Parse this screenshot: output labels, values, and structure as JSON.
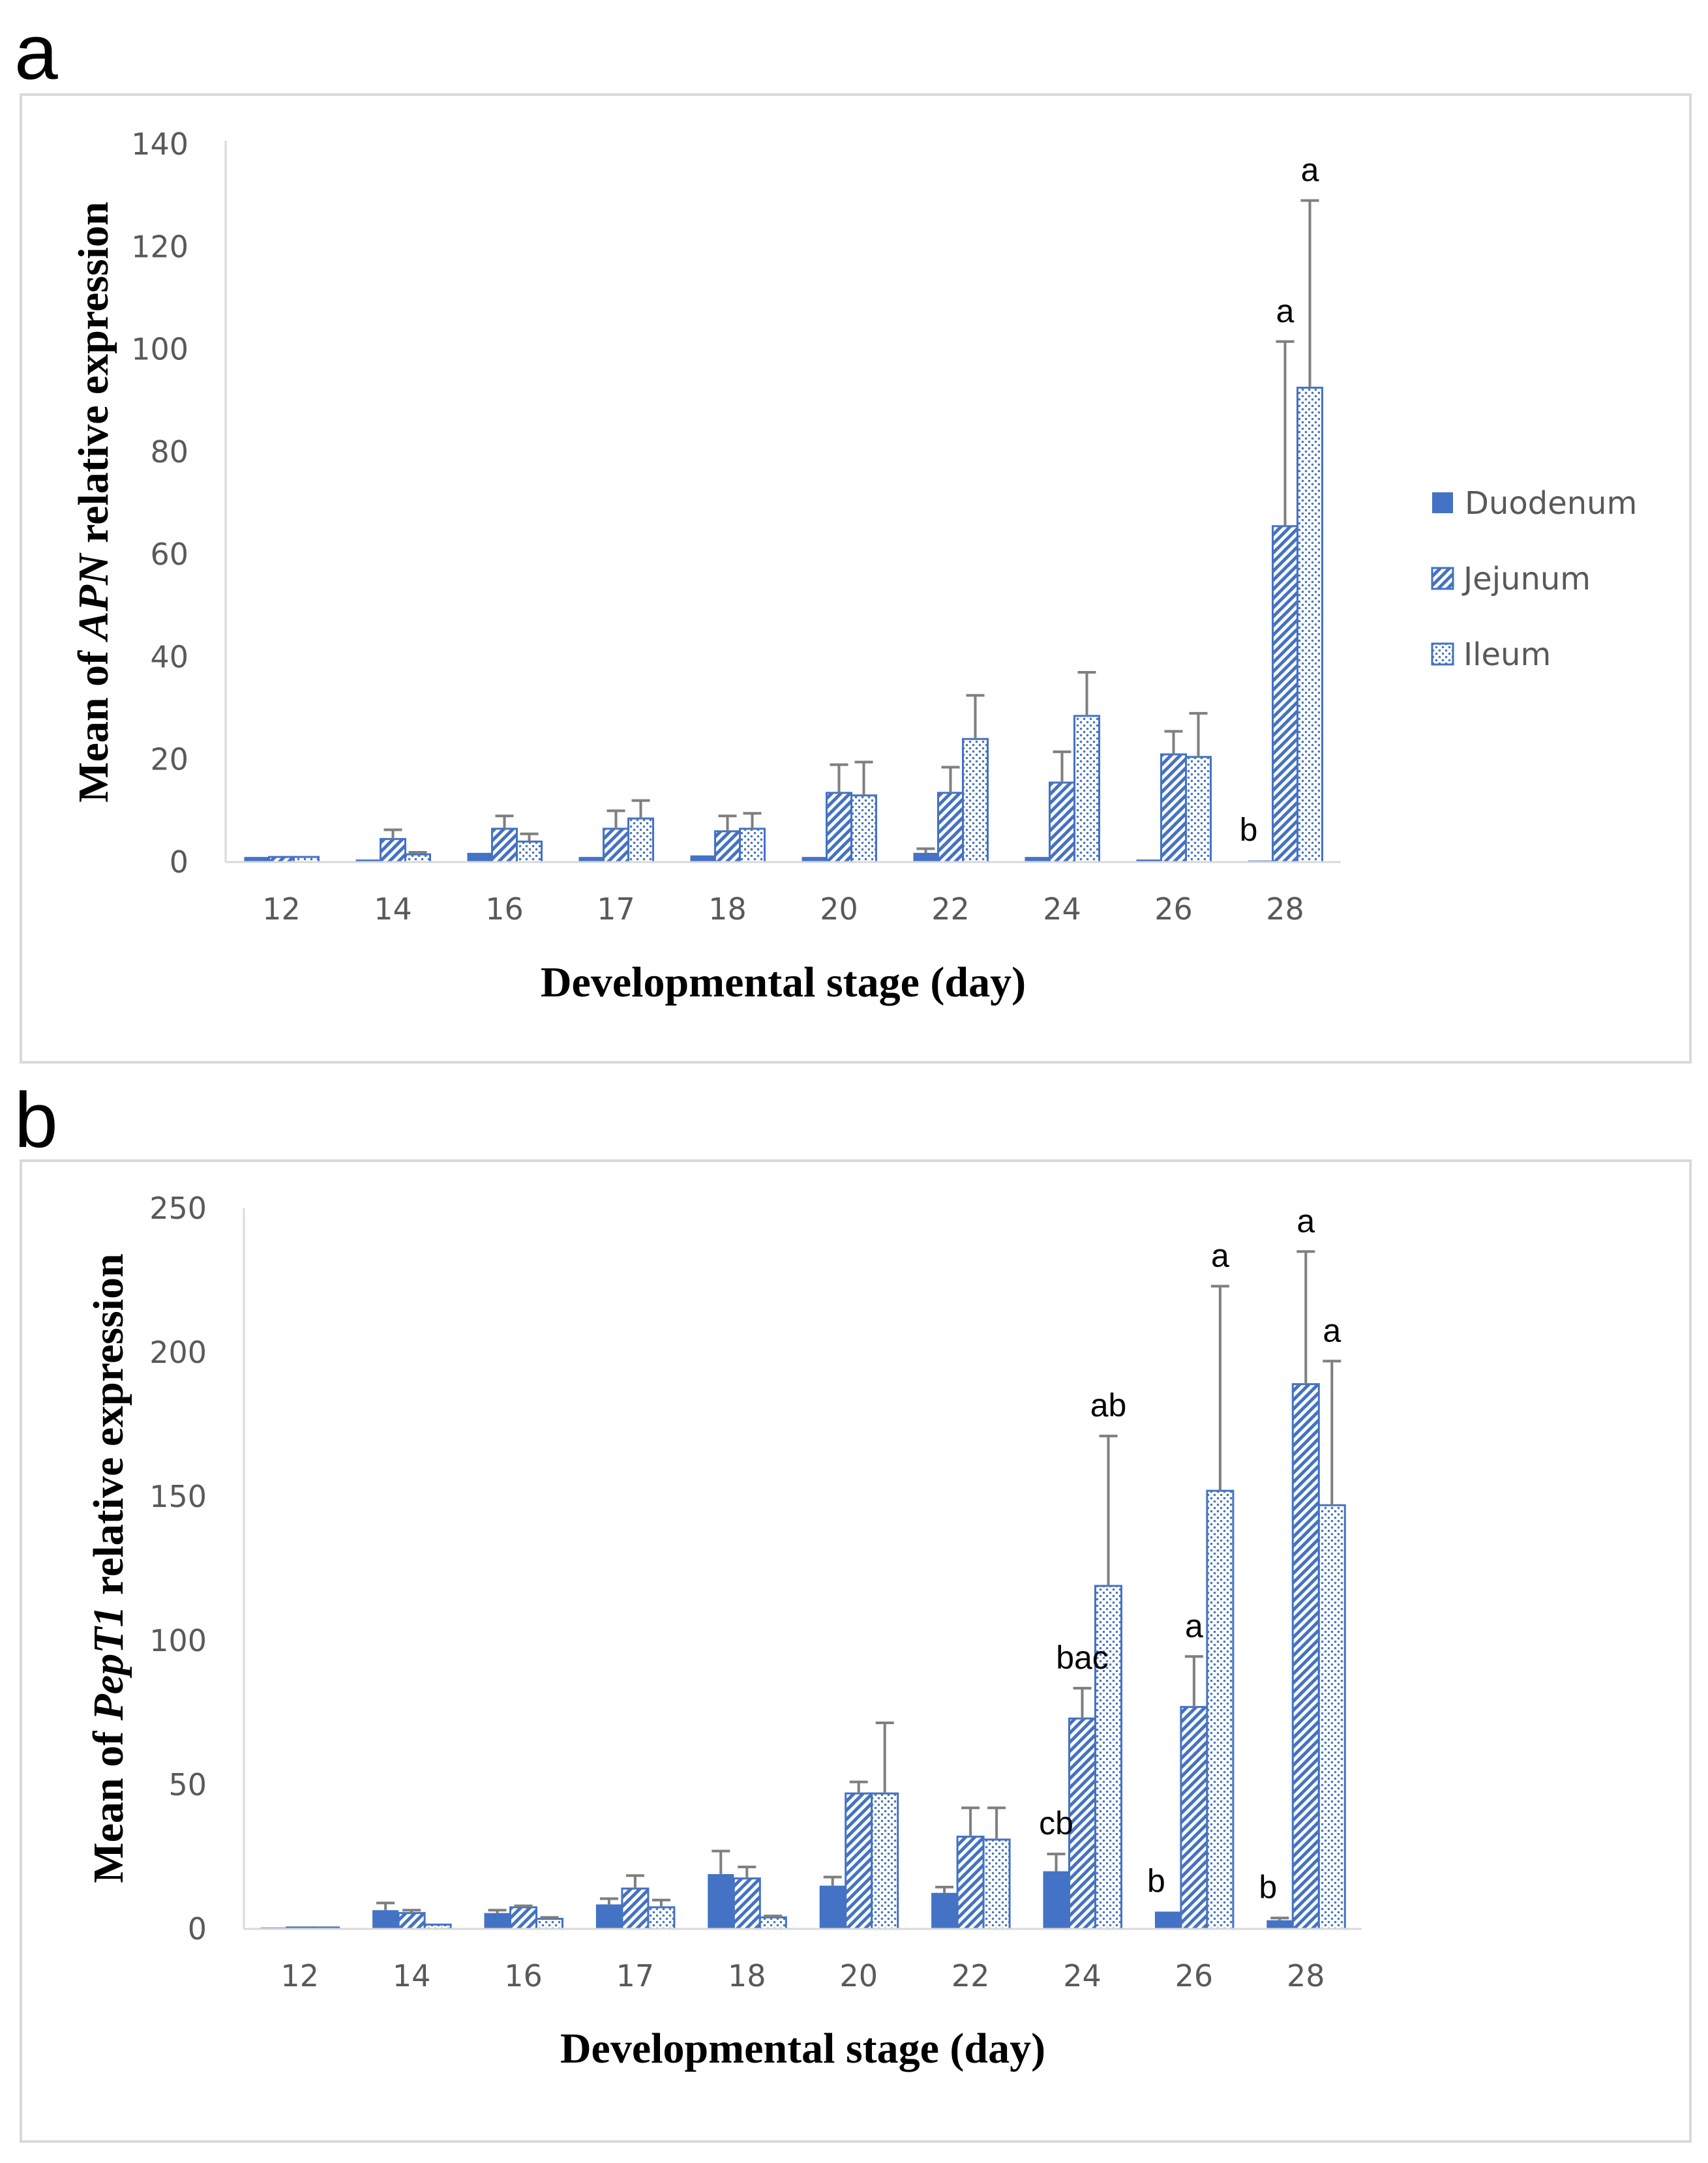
{
  "chart_data": [
    {
      "panel_label": "a",
      "type": "bar",
      "categories": [
        "12",
        "14",
        "16",
        "17",
        "18",
        "20",
        "22",
        "24",
        "26",
        "28"
      ],
      "series": [
        {
          "name": "Duodenum",
          "values": [
            1,
            0.5,
            1.8,
            1,
            1.3,
            1,
            1.8,
            1,
            0.5,
            0.3
          ],
          "errors": [
            0,
            0,
            0,
            0,
            0,
            0,
            0.8,
            0,
            0,
            0
          ]
        },
        {
          "name": "Jejunum",
          "values": [
            1,
            4.5,
            6.5,
            6.5,
            6,
            13.5,
            13.5,
            15.5,
            21,
            65.5
          ],
          "errors": [
            0,
            1.8,
            2.5,
            3.5,
            3,
            5.5,
            5,
            6,
            4.5,
            36
          ]
        },
        {
          "name": "Ileum",
          "values": [
            1,
            1.5,
            4,
            8.5,
            6.5,
            13,
            24,
            28.5,
            20.5,
            92.5
          ],
          "errors": [
            0,
            0.4,
            1.5,
            3.5,
            3,
            6.5,
            8.5,
            8.5,
            8.5,
            36.5
          ]
        }
      ],
      "annotations": [
        {
          "category": "28",
          "series": "Duodenum",
          "text": "b"
        },
        {
          "category": "28",
          "series": "Jejunum",
          "text": "a"
        },
        {
          "category": "28",
          "series": "Ileum",
          "text": "a"
        }
      ],
      "ylabel_prefix": "Mean of ",
      "ylabel_gene": "APN",
      "ylabel_suffix": " relative expression",
      "xlabel": "Developmental stage (day)",
      "ylim": [
        0,
        140
      ],
      "yticks": [
        0,
        20,
        40,
        60,
        80,
        100,
        120,
        140
      ],
      "legend_position": "right",
      "grid": false
    },
    {
      "panel_label": "b",
      "type": "bar",
      "categories": [
        "12",
        "14",
        "16",
        "17",
        "18",
        "20",
        "22",
        "24",
        "26",
        "28"
      ],
      "series": [
        {
          "name": "Duodenum",
          "values": [
            0.5,
            6.5,
            5.5,
            8.5,
            19,
            15,
            12.5,
            20,
            6,
            3
          ],
          "errors": [
            0,
            2.5,
            1,
            2,
            8,
            3,
            2,
            6,
            0,
            0.8
          ]
        },
        {
          "name": "Jejunum",
          "values": [
            0.5,
            5.5,
            7.5,
            14,
            17.5,
            47,
            32,
            73,
            77,
            189
          ],
          "errors": [
            0,
            1,
            0.5,
            4.5,
            4,
            4,
            10,
            10.5,
            17.5,
            46
          ]
        },
        {
          "name": "Ileum",
          "values": [
            0.5,
            1.5,
            3.5,
            7.5,
            4,
            47,
            31,
            119,
            152,
            147
          ],
          "errors": [
            0,
            0,
            0.5,
            2.5,
            0.5,
            24.5,
            11,
            52,
            71,
            50
          ]
        }
      ],
      "annotations": [
        {
          "category": "24",
          "series": "Duodenum",
          "text": "cb"
        },
        {
          "category": "24",
          "series": "Jejunum",
          "text": "bac"
        },
        {
          "category": "24",
          "series": "Ileum",
          "text": "ab"
        },
        {
          "category": "26",
          "series": "Duodenum",
          "text": "b"
        },
        {
          "category": "26",
          "series": "Jejunum",
          "text": "a"
        },
        {
          "category": "26",
          "series": "Ileum",
          "text": "a"
        },
        {
          "category": "28",
          "series": "Duodenum",
          "text": "b"
        },
        {
          "category": "28",
          "series": "Jejunum",
          "text": "a"
        },
        {
          "category": "28",
          "series": "Ileum",
          "text": "a"
        }
      ],
      "ylabel_prefix": "Mean of ",
      "ylabel_gene": "PepT1",
      "ylabel_suffix": " relative expression",
      "xlabel": "Developmental stage (day)",
      "ylim": [
        0,
        250
      ],
      "yticks": [
        0,
        50,
        100,
        150,
        200,
        250
      ],
      "grid": false
    }
  ],
  "colors": {
    "bar_blue": "#4472c4",
    "axis": "#d9d9d9",
    "error_bar": "#7f7f7f"
  }
}
